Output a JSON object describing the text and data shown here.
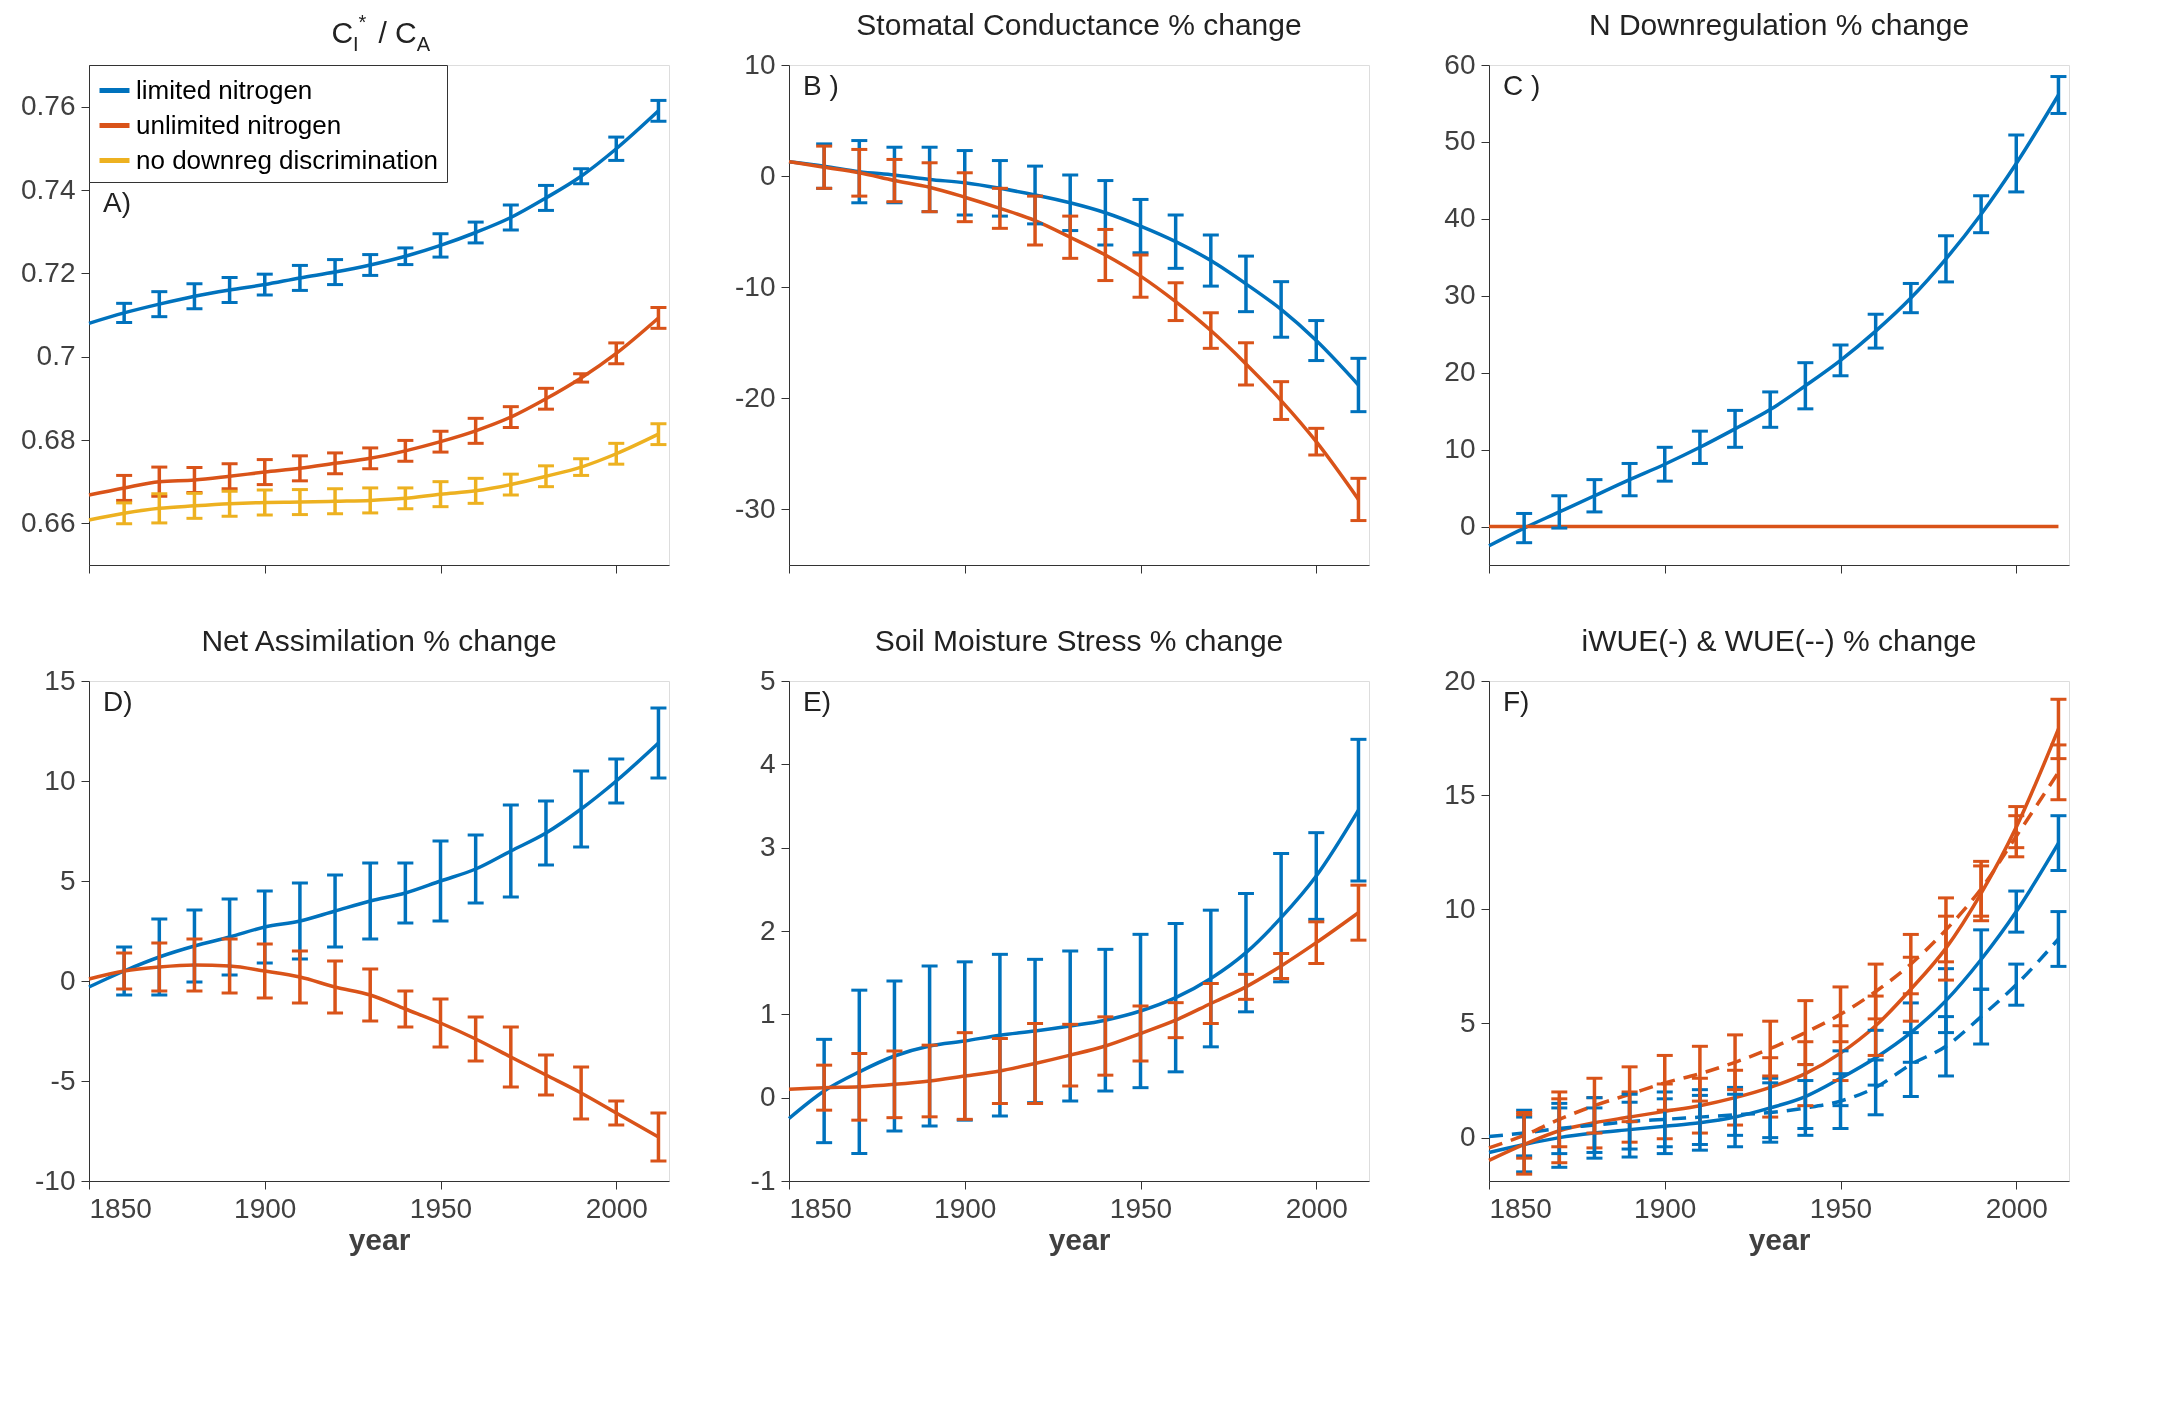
{
  "chart_data": [
    {
      "type": "line",
      "title": "C$_{I}$$^{*}$ / C$_{A}$",
      "x": [
        1850,
        1860,
        1870,
        1880,
        1890,
        1900,
        1910,
        1920,
        1930,
        1940,
        1950,
        1960,
        1970,
        1980,
        1990,
        2000,
        2012
      ],
      "xlim": [
        1850,
        2015
      ],
      "xticks": [
        1850,
        1900,
        1950,
        2000
      ],
      "ylim": [
        0.65,
        0.77
      ],
      "yticks": [
        0.66,
        0.68,
        0.7,
        0.72,
        0.74,
        0.76
      ],
      "tick_labels": "y",
      "legend": "top left",
      "annotations": [
        "A)"
      ],
      "series": [
        {
          "name": "limited nitrogen",
          "color": "#0072bd",
          "values": [
            0.708,
            0.7105,
            0.7126,
            0.7145,
            0.716,
            0.7173,
            0.7189,
            0.7203,
            0.722,
            0.7241,
            0.7267,
            0.7298,
            0.7334,
            0.7381,
            0.7433,
            0.7499,
            0.759
          ],
          "errors": [
            null,
            0.0023,
            0.003,
            0.003,
            0.003,
            0.0025,
            0.003,
            0.003,
            0.0025,
            0.002,
            0.0028,
            0.0025,
            0.003,
            0.003,
            0.0018,
            0.0028,
            0.0025
          ]
        },
        {
          "name": "unlimited nitrogen",
          "color": "#d95319",
          "values": [
            0.6668,
            0.6685,
            0.67,
            0.6704,
            0.6713,
            0.6723,
            0.6732,
            0.6744,
            0.6756,
            0.6774,
            0.6796,
            0.6822,
            0.6855,
            0.6899,
            0.6949,
            0.7008,
            0.7093
          ],
          "errors": [
            null,
            0.003,
            0.0035,
            0.003,
            0.003,
            0.003,
            0.003,
            0.0025,
            0.0025,
            0.0025,
            0.0025,
            0.003,
            0.0025,
            0.0025,
            0.001,
            0.0025,
            0.0025
          ]
        },
        {
          "name": "no downreg discrimination",
          "color": "#edb120",
          "values": [
            0.6608,
            0.6624,
            0.6636,
            0.6642,
            0.6647,
            0.665,
            0.6651,
            0.6653,
            0.6655,
            0.666,
            0.667,
            0.6678,
            0.6693,
            0.6713,
            0.6735,
            0.6767,
            0.6814
          ],
          "errors": [
            null,
            0.0025,
            0.0035,
            0.003,
            0.003,
            0.003,
            0.003,
            0.003,
            0.003,
            0.0025,
            0.003,
            0.003,
            0.0025,
            0.0025,
            0.002,
            0.0025,
            0.0025
          ]
        }
      ]
    },
    {
      "type": "line",
      "title": "Stomatal Conductance % change",
      "x": [
        1850,
        1860,
        1870,
        1880,
        1890,
        1900,
        1910,
        1920,
        1930,
        1940,
        1950,
        1960,
        1970,
        1980,
        1990,
        2000,
        2012
      ],
      "xlim": [
        1850,
        2015
      ],
      "xticks": [
        1850,
        1900,
        1950,
        2000
      ],
      "ylim": [
        -35,
        10
      ],
      "yticks": [
        -30,
        -20,
        -10,
        0,
        10
      ],
      "tick_labels": "y",
      "annotations": [
        "B )"
      ],
      "series": [
        {
          "color": "#0072bd",
          "values": [
            1.3,
            0.9,
            0.4,
            0.1,
            -0.3,
            -0.6,
            -1.1,
            -1.7,
            -2.4,
            -3.3,
            -4.5,
            -5.9,
            -7.6,
            -9.7,
            -12.0,
            -14.8,
            -18.8
          ],
          "errors": [
            null,
            2,
            2.8,
            2.5,
            2.9,
            2.9,
            2.5,
            2.6,
            2.5,
            2.9,
            2.4,
            2.4,
            2.3,
            2.5,
            2.5,
            1.8,
            2.4
          ]
        },
        {
          "color": "#d95319",
          "values": [
            1.3,
            0.8,
            0.3,
            -0.4,
            -1.0,
            -1.9,
            -2.9,
            -4.0,
            -5.5,
            -7.1,
            -9.0,
            -11.3,
            -13.9,
            -16.9,
            -20.2,
            -23.9,
            -29.1
          ],
          "errors": [
            null,
            1.9,
            2.1,
            1.9,
            2.2,
            2.2,
            1.8,
            2.2,
            1.9,
            2.3,
            1.9,
            1.7,
            1.6,
            1.9,
            1.7,
            1.2,
            1.9
          ]
        }
      ]
    },
    {
      "type": "line",
      "title": "N Downregulation % change",
      "x": [
        1850,
        1860,
        1870,
        1880,
        1890,
        1900,
        1910,
        1920,
        1930,
        1940,
        1950,
        1960,
        1970,
        1980,
        1990,
        2000,
        2012
      ],
      "xlim": [
        1850,
        2015
      ],
      "xticks": [
        1850,
        1900,
        1950,
        2000
      ],
      "ylim": [
        -5,
        60
      ],
      "yticks": [
        0,
        10,
        20,
        30,
        40,
        50,
        60
      ],
      "tick_labels": "y",
      "annotations": [
        "C )"
      ],
      "series": [
        {
          "color": "#0072bd",
          "values": [
            -2.5,
            -0.2,
            1.9,
            4.0,
            6.1,
            8.1,
            10.3,
            12.7,
            15.2,
            18.3,
            21.6,
            25.4,
            29.7,
            34.8,
            40.6,
            47.2,
            56.1
          ],
          "errors": [
            null,
            1.9,
            2.1,
            2.1,
            2.1,
            2.2,
            2.1,
            2.4,
            2.3,
            3.0,
            2.0,
            2.2,
            1.9,
            3.0,
            2.4,
            3.7,
            2.4
          ]
        },
        {
          "color": "#d95319",
          "values": [
            0,
            0,
            0,
            0,
            0,
            0,
            0,
            0,
            0,
            0,
            0,
            0,
            0,
            0,
            0,
            0,
            0
          ]
        }
      ]
    },
    {
      "type": "line",
      "title": "Net Assimilation % change",
      "xlabel": "year",
      "x": [
        1850,
        1860,
        1870,
        1880,
        1890,
        1900,
        1910,
        1920,
        1930,
        1940,
        1950,
        1960,
        1970,
        1980,
        1990,
        2000,
        2012
      ],
      "xlim": [
        1850,
        2015
      ],
      "xticks": [
        1850,
        1900,
        1950,
        2000
      ],
      "ylim": [
        -10,
        15
      ],
      "yticks": [
        -10,
        -5,
        0,
        5,
        10,
        15
      ],
      "annotations": [
        "D)"
      ],
      "series": [
        {
          "color": "#0072bd",
          "values": [
            -0.3,
            0.5,
            1.2,
            1.75,
            2.2,
            2.7,
            3.0,
            3.5,
            4.0,
            4.4,
            5.0,
            5.6,
            6.5,
            7.4,
            8.6,
            10.0,
            11.9
          ],
          "errors": [
            null,
            1.2,
            1.9,
            1.8,
            1.9,
            1.8,
            1.9,
            1.8,
            1.9,
            1.5,
            2.0,
            1.7,
            2.3,
            1.6,
            1.9,
            1.1,
            1.75
          ]
        },
        {
          "color": "#d95319",
          "values": [
            0.1,
            0.5,
            0.7,
            0.8,
            0.75,
            0.5,
            0.2,
            -0.3,
            -0.7,
            -1.4,
            -2.1,
            -2.9,
            -3.8,
            -4.7,
            -5.6,
            -6.6,
            -7.8
          ],
          "errors": [
            null,
            0.9,
            1.2,
            1.3,
            1.35,
            1.35,
            1.3,
            1.3,
            1.3,
            0.9,
            1.2,
            1.1,
            1.5,
            1.0,
            1.3,
            0.6,
            1.2
          ]
        }
      ]
    },
    {
      "type": "line",
      "title": "Soil Moisture Stress % change",
      "xlabel": "year",
      "x": [
        1850,
        1860,
        1870,
        1880,
        1890,
        1900,
        1910,
        1920,
        1930,
        1940,
        1950,
        1960,
        1970,
        1980,
        1990,
        2000,
        2012
      ],
      "xlim": [
        1850,
        2015
      ],
      "xticks": [
        1850,
        1900,
        1950,
        2000
      ],
      "ylim": [
        -1,
        5
      ],
      "yticks": [
        -1,
        0,
        1,
        2,
        3,
        4,
        5
      ],
      "annotations": [
        "E)"
      ],
      "series": [
        {
          "color": "#0072bd",
          "values": [
            -0.25,
            0.08,
            0.31,
            0.5,
            0.62,
            0.68,
            0.75,
            0.8,
            0.86,
            0.93,
            1.04,
            1.2,
            1.43,
            1.74,
            2.16,
            2.66,
            3.45
          ],
          "errors": [
            null,
            0.62,
            0.98,
            0.9,
            0.96,
            0.95,
            0.97,
            0.86,
            0.9,
            0.85,
            0.92,
            0.89,
            0.82,
            0.71,
            0.77,
            0.52,
            0.85
          ]
        },
        {
          "color": "#d95319",
          "values": [
            0.1,
            0.12,
            0.13,
            0.16,
            0.2,
            0.26,
            0.32,
            0.41,
            0.51,
            0.62,
            0.77,
            0.93,
            1.13,
            1.33,
            1.58,
            1.86,
            2.22
          ],
          "errors": [
            null,
            0.27,
            0.4,
            0.4,
            0.43,
            0.52,
            0.39,
            0.48,
            0.37,
            0.35,
            0.33,
            0.21,
            0.24,
            0.15,
            0.15,
            0.25,
            0.33
          ]
        }
      ]
    },
    {
      "type": "line",
      "title": "iWUE(-) & WUE(--) % change",
      "xlabel": "year",
      "x": [
        1850,
        1860,
        1870,
        1880,
        1890,
        1900,
        1910,
        1920,
        1930,
        1940,
        1950,
        1960,
        1970,
        1980,
        1990,
        2000,
        2012
      ],
      "xlim": [
        1850,
        2015
      ],
      "xticks": [
        1850,
        1900,
        1950,
        2000
      ],
      "ylim": [
        -1.9,
        20
      ],
      "yticks": [
        0,
        5,
        10,
        15,
        20
      ],
      "annotations": [
        "F)"
      ],
      "series": [
        {
          "color": "#0072bd",
          "values": [
            -0.65,
            -0.3,
            0.0,
            0.2,
            0.35,
            0.5,
            0.65,
            0.9,
            1.3,
            1.8,
            2.6,
            3.5,
            4.6,
            6.0,
            7.8,
            9.9,
            12.9
          ],
          "errors": [
            null,
            1.2,
            1.3,
            1.1,
            1.2,
            1.2,
            1.2,
            1.3,
            1.3,
            1.4,
            1.2,
            1.2,
            1.3,
            1.4,
            1.3,
            0.9,
            1.2
          ]
        },
        {
          "color": "#d95319",
          "values": [
            -1.0,
            -0.3,
            0.3,
            0.65,
            0.9,
            1.15,
            1.4,
            1.75,
            2.2,
            2.8,
            3.7,
            4.9,
            6.5,
            8.3,
            10.7,
            13.6,
            17.9
          ],
          "errors": [
            null,
            1.3,
            1.4,
            1.1,
            1.1,
            1.2,
            1.2,
            1.2,
            1.3,
            1.4,
            1.2,
            1.3,
            1.4,
            1.4,
            1.2,
            0.9,
            1.3
          ]
        },
        {
          "color": "#0072bd",
          "line_style": "dashed",
          "values": [
            0.05,
            0.2,
            0.4,
            0.55,
            0.7,
            0.8,
            0.9,
            1.0,
            1.1,
            1.3,
            1.6,
            2.2,
            3.2,
            4.0,
            5.3,
            6.7,
            8.7
          ],
          "errors": [
            null,
            1.0,
            1.1,
            1.2,
            1.2,
            1.2,
            1.2,
            0.9,
            1.3,
            1.2,
            1.2,
            1.2,
            1.4,
            1.3,
            1.2,
            0.9,
            1.2
          ]
        },
        {
          "color": "#d95319",
          "line_style": "dashed",
          "values": [
            -0.45,
            0.1,
            0.8,
            1.4,
            1.9,
            2.4,
            2.8,
            3.3,
            3.9,
            4.6,
            5.4,
            6.4,
            7.6,
            9.1,
            10.9,
            13.2,
            16.0
          ],
          "errors": [
            null,
            1.0,
            1.2,
            1.2,
            1.2,
            1.2,
            1.2,
            1.2,
            1.2,
            1.4,
            1.2,
            1.2,
            1.3,
            1.4,
            1.2,
            0.9,
            1.2
          ]
        }
      ]
    }
  ]
}
